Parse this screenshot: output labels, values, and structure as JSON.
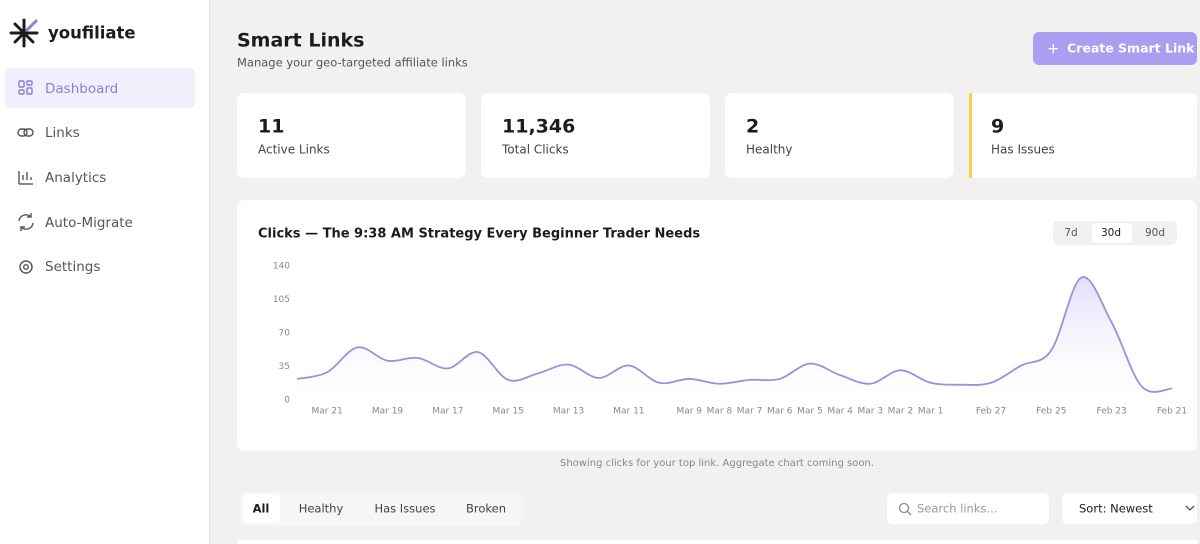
{
  "sidebar": {
    "brand": "youfiliate",
    "nav": [
      "Dashboard",
      "Links",
      "Analytics",
      "Auto-Migrate",
      "Settings"
    ]
  },
  "header": {
    "title": "Smart Links",
    "subtitle": "Manage your geo-targeted affiliate links",
    "button": "Create Smart Link"
  },
  "stats": [
    {
      "value": "11",
      "label": "Active Links"
    },
    {
      "value": "11,346",
      "label": "Total Clicks"
    },
    {
      "value": "2",
      "label": "Healthy"
    },
    {
      "value": "9",
      "label": "Has Issues"
    }
  ],
  "range_options": [
    "7d",
    "30d",
    "90d"
  ],
  "chart_data": {
    "type": "line",
    "title": "Clicks — The 9:38 AM Strategy Every Beginner Trader Needs",
    "categories": [
      null,
      "Mar 21",
      null,
      "Mar 19",
      null,
      "Mar 17",
      null,
      "Mar 15",
      null,
      "Mar 13",
      null,
      "Mar 11",
      null,
      "Mar 9",
      "Mar 8",
      "Mar 7",
      "Mar 6",
      "Mar 5",
      "Mar 4",
      "Mar 3",
      "Mar 2",
      "Mar 1",
      null,
      "Feb 27",
      null,
      "Feb 25",
      null,
      "Feb 23",
      null,
      "Feb 21"
    ],
    "values": [
      22,
      29,
      55,
      41,
      44,
      33,
      50,
      21,
      28,
      37,
      23,
      36,
      18,
      22,
      17,
      21,
      22,
      38,
      26,
      17,
      31,
      18,
      16,
      18,
      36,
      52,
      128,
      81,
      14,
      12
    ],
    "color": "#9b8fe0",
    "ylim": [
      0,
      140
    ],
    "yticks": [
      0,
      35,
      70,
      105,
      140
    ],
    "grid": false
  },
  "footnote": "Showing clicks for your top link. Aggregate chart coming soon.",
  "filters": [
    "All",
    "Healthy",
    "Has Issues",
    "Broken"
  ],
  "search_placeholder": "Search links...",
  "sort": "Sort: Newest"
}
